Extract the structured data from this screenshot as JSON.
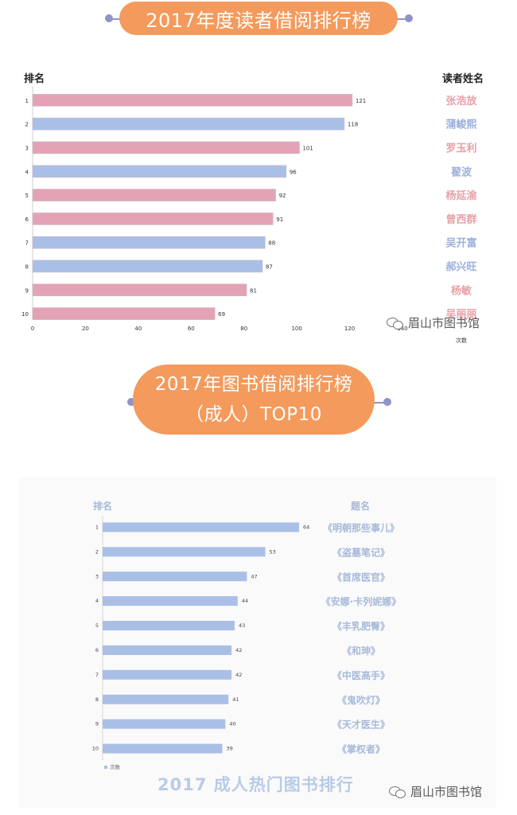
{
  "title1": "2017年度读者借阅排行榜",
  "title2_line1": "2017年图书借阅排行榜",
  "title2_line2": "（成人）TOP10",
  "watermark": "眉山市图书馆",
  "chart_data": [
    {
      "type": "bar",
      "orientation": "horizontal",
      "rank_header": "排名",
      "name_header": "读者姓名",
      "xlabel": "次数",
      "xlim": [
        0,
        140
      ],
      "xticks": [
        "0",
        "20",
        "40",
        "60",
        "80",
        "100",
        "120",
        "140"
      ],
      "ranks": [
        "1",
        "2",
        "3",
        "4",
        "5",
        "6",
        "7",
        "8",
        "9",
        "10"
      ],
      "categories": [
        "张浩放",
        "蒲峻熙",
        "罗玉利",
        "翟波",
        "杨延渝",
        "曾西群",
        "吴开富",
        "郝兴旺",
        "杨敏",
        "吴丽丽"
      ],
      "values": [
        121,
        118,
        101,
        96,
        92,
        91,
        88,
        87,
        81,
        69
      ],
      "colors": [
        "#e3a3b4",
        "#a9bfe6",
        "#e3a3b4",
        "#a9bfe6",
        "#e3a3b4",
        "#e3a3b4",
        "#a9bfe6",
        "#a9bfe6",
        "#e3a3b4",
        "#e3a3b4"
      ],
      "name_colors": [
        "#e8a0a8",
        "#9bb1dc",
        "#e8a0a8",
        "#9bb1dc",
        "#e8a0a8",
        "#e8a0a8",
        "#9bb1dc",
        "#9bb1dc",
        "#e8a0a8",
        "#e8a0a8"
      ]
    },
    {
      "type": "bar",
      "orientation": "horizontal",
      "rank_header": "排名",
      "name_header": "题名",
      "legend": "次数",
      "ranks": [
        "1",
        "2",
        "3",
        "4",
        "5",
        "6",
        "7",
        "8",
        "9",
        "10"
      ],
      "categories": [
        "《明朝那些事儿》",
        "《盗墓笔记》",
        "《首席医官》",
        "《安娜·卡列妮娜》",
        "《丰乳肥臀》",
        "《和珅》",
        "《中医高手》",
        "《鬼吹灯》",
        "《天才医生》",
        "《掌权者》"
      ],
      "values": [
        64,
        53,
        47,
        44,
        43,
        42,
        42,
        41,
        40,
        39
      ],
      "bar_color": "#a9bfe6",
      "name_color": "#a7b9d9",
      "footer": "2017 成人热门图书排行"
    }
  ]
}
